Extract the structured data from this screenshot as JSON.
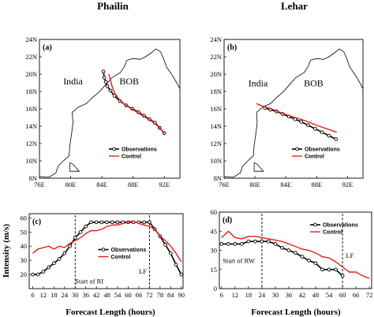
{
  "columns": [
    "Phailin",
    "Lehar"
  ],
  "chart_data": [
    {
      "panel": "(a)",
      "type": "line",
      "subtype": "map-track",
      "xlim": [
        76,
        94
      ],
      "ylim": [
        8,
        24
      ],
      "x_ticks": [
        "76E",
        "80E",
        "84E",
        "88E",
        "92E"
      ],
      "x_tick_values": [
        76,
        80,
        84,
        88,
        92
      ],
      "y_ticks": [
        "8N",
        "10N",
        "12N",
        "14N",
        "16N",
        "18N",
        "20N",
        "22N",
        "24N"
      ],
      "y_tick_values": [
        8,
        10,
        12,
        14,
        16,
        18,
        20,
        22,
        24
      ],
      "region_labels": [
        {
          "text": "India",
          "x": 80.3,
          "y": 18.8
        },
        {
          "text": "BOB",
          "x": 87.5,
          "y": 18.8
        }
      ],
      "legend": [
        "Observations",
        "Control"
      ],
      "legend_position": "lower-right",
      "series": [
        {
          "name": "Observations",
          "color": "#000000",
          "marker": "open-circle",
          "points": [
            [
              92.0,
              13.2
            ],
            [
              91.4,
              13.8
            ],
            [
              90.8,
              14.4
            ],
            [
              90.1,
              14.8
            ],
            [
              89.4,
              15.2
            ],
            [
              88.7,
              15.6
            ],
            [
              87.9,
              16.0
            ],
            [
              87.1,
              16.4
            ],
            [
              86.3,
              16.9
            ],
            [
              85.6,
              17.5
            ],
            [
              85.1,
              18.1
            ],
            [
              84.7,
              18.6
            ],
            [
              84.5,
              19.1
            ],
            [
              84.3,
              19.6
            ],
            [
              84.2,
              20.3
            ]
          ]
        },
        {
          "name": "Control",
          "color": "#e0201c",
          "marker": "none",
          "points": [
            [
              92.0,
              13.2
            ],
            [
              91.3,
              13.9
            ],
            [
              90.5,
              14.5
            ],
            [
              89.6,
              15.0
            ],
            [
              88.7,
              15.5
            ],
            [
              87.8,
              16.0
            ],
            [
              86.9,
              16.5
            ],
            [
              86.1,
              17.2
            ],
            [
              85.6,
              17.9
            ],
            [
              85.3,
              18.6
            ],
            [
              85.1,
              19.3
            ],
            [
              84.9,
              20.0
            ]
          ]
        }
      ]
    },
    {
      "panel": "(b)",
      "type": "line",
      "subtype": "map-track",
      "xlim": [
        76,
        94
      ],
      "ylim": [
        8,
        24
      ],
      "x_ticks": [
        "76E",
        "80E",
        "84E",
        "88E",
        "92E"
      ],
      "x_tick_values": [
        76,
        80,
        84,
        88,
        92
      ],
      "y_ticks": [
        "8N",
        "10N",
        "12N",
        "14N",
        "16N",
        "18N",
        "20N",
        "22N",
        "24N"
      ],
      "y_tick_values": [
        8,
        10,
        12,
        14,
        16,
        18,
        20,
        22,
        24
      ],
      "region_labels": [
        {
          "text": "India",
          "x": 80.4,
          "y": 18.6
        },
        {
          "text": "BOB",
          "x": 87.6,
          "y": 18.6
        }
      ],
      "legend": [
        "Observations",
        "Control"
      ],
      "legend_position": "lower-right",
      "series": [
        {
          "name": "Observations",
          "color": "#000000",
          "marker": "open-circle",
          "points": [
            [
              90.5,
              12.5
            ],
            [
              89.6,
              12.9
            ],
            [
              88.7,
              13.3
            ],
            [
              87.8,
              13.7
            ],
            [
              86.9,
              14.1
            ],
            [
              86.0,
              14.5
            ],
            [
              85.2,
              14.8
            ],
            [
              84.4,
              15.1
            ],
            [
              83.6,
              15.4
            ],
            [
              82.8,
              15.7
            ],
            [
              82.0,
              15.9
            ],
            [
              81.3,
              16.1
            ]
          ]
        },
        {
          "name": "Control",
          "color": "#e0201c",
          "marker": "none",
          "points": [
            [
              90.6,
              13.3
            ],
            [
              89.3,
              13.7
            ],
            [
              88.0,
              14.1
            ],
            [
              86.6,
              14.6
            ],
            [
              85.2,
              15.0
            ],
            [
              83.8,
              15.4
            ],
            [
              82.4,
              15.9
            ],
            [
              81.0,
              16.3
            ],
            [
              80.2,
              16.6
            ]
          ]
        }
      ]
    },
    {
      "panel": "(c)",
      "type": "line",
      "xlim": [
        4,
        91
      ],
      "ylim": [
        10,
        63
      ],
      "x_ticks": [
        "6",
        "12",
        "18",
        "24",
        "30",
        "36",
        "42",
        "48",
        "54",
        "60",
        "66",
        "72",
        "78",
        "84",
        "90"
      ],
      "x_tick_values": [
        6,
        12,
        18,
        24,
        30,
        36,
        42,
        48,
        54,
        60,
        66,
        72,
        78,
        84,
        90
      ],
      "y_ticks": [
        "20",
        "30",
        "40",
        "50",
        "60"
      ],
      "y_tick_values": [
        20,
        30,
        40,
        50,
        60
      ],
      "legend": [
        "Observations",
        "Control"
      ],
      "legend_position": "center",
      "annotations": [
        {
          "text": "Start of RI",
          "x": 30,
          "y": 13.5
        },
        {
          "text": "LF",
          "x": 66,
          "y": 20.5
        }
      ],
      "vlines": [
        30,
        72
      ],
      "series": [
        {
          "name": "Observations",
          "color": "#000000",
          "marker": "open-circle",
          "x": [
            6,
            9,
            12,
            15,
            18,
            21,
            24,
            27,
            30,
            33,
            36,
            39,
            42,
            45,
            48,
            51,
            54,
            57,
            60,
            63,
            66,
            69,
            72,
            75,
            78,
            81,
            84,
            87,
            90
          ],
          "y": [
            20,
            20,
            22,
            25,
            28,
            31,
            35,
            40,
            46,
            50,
            54,
            57,
            57,
            57,
            57,
            57,
            57,
            57,
            57,
            57,
            57,
            57,
            57,
            52,
            47,
            41,
            35,
            27,
            20
          ]
        },
        {
          "name": "Control",
          "color": "#e0201c",
          "marker": "none",
          "x": [
            6,
            9,
            12,
            15,
            18,
            21,
            24,
            27,
            30,
            33,
            36,
            39,
            42,
            45,
            48,
            51,
            54,
            57,
            60,
            63,
            66,
            69,
            72,
            75,
            78,
            81,
            84,
            87,
            90
          ],
          "y": [
            35,
            38,
            39,
            40,
            38,
            40,
            39,
            42,
            44,
            46,
            49,
            51,
            51,
            52,
            54,
            55,
            55,
            56,
            57,
            58,
            56,
            55,
            54,
            52,
            47,
            44,
            40,
            35,
            29
          ]
        }
      ]
    },
    {
      "panel": "(d)",
      "type": "line",
      "xlim": [
        5,
        73
      ],
      "ylim": [
        0,
        60
      ],
      "x_ticks": [
        "6",
        "12",
        "18",
        "24",
        "30",
        "36",
        "42",
        "48",
        "54",
        "60",
        "66",
        "72"
      ],
      "x_tick_values": [
        6,
        12,
        18,
        24,
        30,
        36,
        42,
        48,
        54,
        60,
        66,
        72
      ],
      "y_ticks": [
        "0",
        "15",
        "30",
        "45",
        "60"
      ],
      "y_tick_values": [
        0,
        15,
        30,
        45,
        60
      ],
      "legend": [
        "Observations",
        "Control"
      ],
      "legend_position": "top-right",
      "annotations": [
        {
          "text": "Start of RW",
          "x": 6.5,
          "y": 20
        },
        {
          "text": "LF",
          "x": 61.5,
          "y": 24
        }
      ],
      "vlines": [
        24,
        60
      ],
      "series": [
        {
          "name": "Observations",
          "color": "#000000",
          "marker": "open-circle",
          "x": [
            6,
            9,
            12,
            15,
            18,
            21,
            24,
            27,
            30,
            33,
            36,
            39,
            42,
            45,
            48,
            51,
            54,
            57,
            60
          ],
          "y": [
            35,
            35,
            35,
            35,
            37,
            37,
            37,
            37,
            35,
            32,
            30,
            28,
            25,
            22,
            20,
            15,
            15,
            15,
            10
          ]
        },
        {
          "name": "Control",
          "color": "#e0201c",
          "marker": "none",
          "x": [
            6,
            9,
            12,
            15,
            18,
            21,
            24,
            27,
            30,
            33,
            36,
            39,
            42,
            45,
            48,
            51,
            54,
            57,
            60,
            63,
            66,
            69,
            72
          ],
          "y": [
            40,
            45,
            40,
            39,
            41,
            41,
            40,
            39,
            38,
            37,
            35,
            33,
            31,
            30,
            28,
            25,
            24,
            21,
            17,
            13,
            13,
            10,
            8
          ]
        }
      ]
    }
  ],
  "y_axis_title": "Intensity (m/s)",
  "x_axis_title": "Forecast Length (hours)"
}
